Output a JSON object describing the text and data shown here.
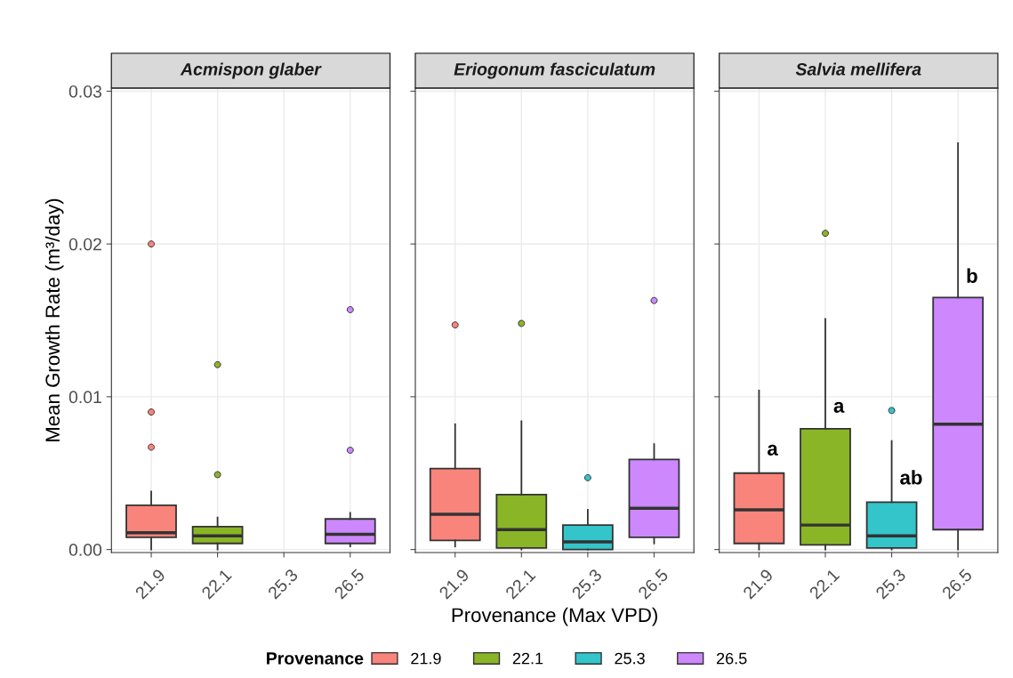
{
  "chart_data": [
    {
      "type": "box",
      "title": "Acmispon glaber",
      "ylabel": "Mean Growth Rate (m³/day)",
      "legend_title": "Provenance",
      "categories": [
        "21.9",
        "22.1",
        "25.3",
        "26.5"
      ],
      "colors": [
        "#f9847b",
        "#8ab526",
        "#33c5c9",
        "#cd88fe"
      ],
      "boxes": [
        {
          "low": 0.0,
          "q1": 0.0008,
          "median": 0.0011,
          "q3": 0.0029,
          "high": 0.0038,
          "outliers": [
            0.02,
            0.009,
            0.0067
          ]
        },
        {
          "low": 0.0,
          "q1": 0.0004,
          "median": 0.0009,
          "q3": 0.0015,
          "high": 0.0021,
          "outliers": [
            0.0121,
            0.0049
          ]
        },
        null,
        {
          "low": 0.0002,
          "q1": 0.0004,
          "median": 0.001,
          "q3": 0.002,
          "high": 0.0024,
          "outliers": [
            0.0157,
            0.0065
          ]
        }
      ],
      "ylim": [
        -0.0002,
        0.0302
      ],
      "yticks": [
        {
          "value": 0,
          "label": "0.00"
        },
        {
          "value": 0.01,
          "label": "0.01"
        },
        {
          "value": 0.02,
          "label": "0.02"
        },
        {
          "value": 0.03,
          "label": "0.03"
        }
      ],
      "grid": true
    },
    {
      "type": "box",
      "title": "Eriogonum fasciculatum",
      "xlabel": "Provenance (Max VPD)",
      "categories": [
        "21.9",
        "22.1",
        "25.3",
        "26.5"
      ],
      "colors": [
        "#f9847b",
        "#8ab526",
        "#33c5c9",
        "#cd88fe"
      ],
      "boxes": [
        {
          "low": 0.0002,
          "q1": 0.0006,
          "median": 0.0023,
          "q3": 0.0053,
          "high": 0.0082,
          "outliers": [
            0.0147
          ]
        },
        {
          "low": 0.0,
          "q1": 0.0001,
          "median": 0.0013,
          "q3": 0.0036,
          "high": 0.0084,
          "outliers": [
            0.0148
          ]
        },
        {
          "low": 0.0,
          "q1": 0.0,
          "median": 0.0005,
          "q3": 0.0016,
          "high": 0.0026,
          "outliers": [
            0.0047
          ]
        },
        {
          "low": 0.0004,
          "q1": 0.0008,
          "median": 0.0027,
          "q3": 0.0059,
          "high": 0.0069,
          "outliers": [
            0.0163
          ]
        }
      ],
      "ylim": [
        -0.0002,
        0.0302
      ],
      "yticks": [
        0,
        0.01,
        0.02,
        0.03
      ],
      "tick_labels": "x",
      "grid": true
    },
    {
      "type": "box",
      "title": "Salvia mellifera",
      "categories": [
        "21.9",
        "22.1",
        "25.3",
        "26.5"
      ],
      "colors": [
        "#f9847b",
        "#8ab526",
        "#33c5c9",
        "#cd88fe"
      ],
      "boxes": [
        {
          "low": 0.0,
          "q1": 0.0004,
          "median": 0.0026,
          "q3": 0.005,
          "high": 0.0104
        },
        {
          "low": 0.0,
          "q1": 0.0003,
          "median": 0.0016,
          "q3": 0.0079,
          "high": 0.0151,
          "outliers": [
            0.0207
          ]
        },
        {
          "low": 0.0,
          "q1": 0.0001,
          "median": 0.0009,
          "q3": 0.0031,
          "high": 0.0071,
          "outliers": [
            0.0091
          ]
        },
        {
          "low": 0.0,
          "q1": 0.0013,
          "median": 0.0082,
          "q3": 0.0165,
          "high": 0.0266
        }
      ],
      "annotations": [
        {
          "text": "a",
          "x": "21.9",
          "y": 0.0065
        },
        {
          "text": "a",
          "x": "22.1",
          "y": 0.0093
        },
        {
          "text": "ab",
          "x": "25.3",
          "y": 0.0046
        },
        {
          "text": "b",
          "x": "26.5",
          "y": 0.0178
        }
      ],
      "ylim": [
        -0.0002,
        0.0302
      ],
      "yticks": [
        0,
        0.01,
        0.02,
        0.03
      ],
      "tick_labels": "x",
      "grid": true
    }
  ]
}
